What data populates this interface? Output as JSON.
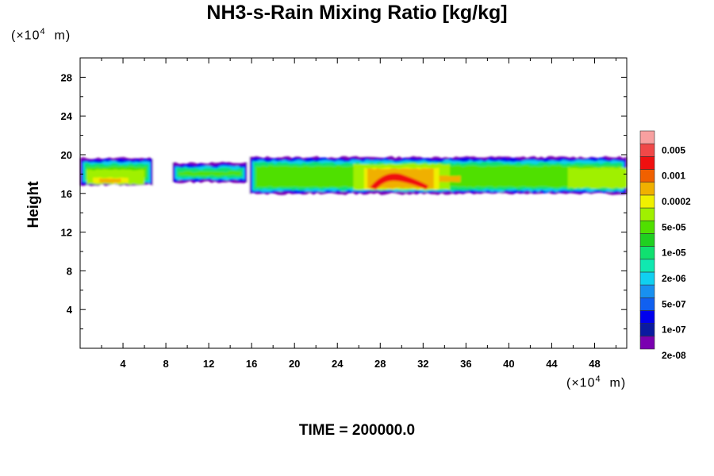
{
  "chart_data": {
    "type": "heatmap",
    "title": "NH3-s-Rain Mixing Ratio [kg/kg]",
    "xlabel": "",
    "ylabel": "Height",
    "x_unit": "(×10⁴ m)",
    "y_unit": "(×10⁴ m)",
    "x_ticks": [
      4,
      8,
      12,
      16,
      20,
      24,
      28,
      32,
      36,
      40,
      44,
      48
    ],
    "y_ticks": [
      4,
      8,
      12,
      16,
      20,
      24,
      28
    ],
    "xlim": [
      0,
      51
    ],
    "ylim": [
      0,
      30
    ],
    "colorbar": {
      "labels": [
        "0.005",
        "0.001",
        "0.0002",
        "5e-05",
        "1e-05",
        "2e-06",
        "5e-07",
        "1e-07",
        "2e-08"
      ],
      "colors": [
        "#7a00b0",
        "#0a1aa0",
        "#0000ee",
        "#1060f0",
        "#1890f0",
        "#10d0f0",
        "#10e8b0",
        "#10e070",
        "#20d020",
        "#50e000",
        "#a0f000",
        "#f0f000",
        "#f0b000",
        "#f06000",
        "#f01010",
        "#f04848",
        "#f8a0a0"
      ]
    },
    "cloud_layer": {
      "outer_segments": [
        [
          0,
          6.8,
          16.9,
          19.6
        ],
        [
          8.6,
          15.6,
          17.2,
          19.1
        ],
        [
          15.8,
          51,
          16.0,
          19.7
        ]
      ],
      "gaps": [
        [
          6.8,
          8.6
        ],
        [
          15.6,
          15.8
        ]
      ],
      "max_region": {
        "x": [
          27.0,
          32.5
        ],
        "y": [
          16.5,
          18.5
        ],
        "color": "#f01010"
      }
    }
  },
  "footer": {
    "time_label": "TIME = 200000.0"
  }
}
